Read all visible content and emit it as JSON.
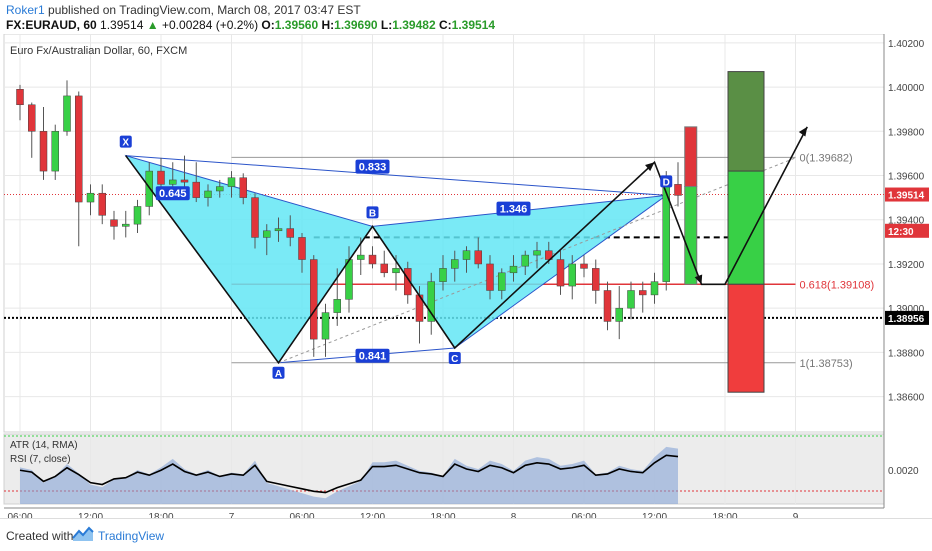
{
  "header": {
    "user": "Roker1",
    "published": "published on TradingView.com, March 08, 2017 03:47 EST",
    "symbol": "FX:EURAUD, 60",
    "price": "1.39514",
    "change": "+0.00284 (+0.2%)",
    "o_label": "O:",
    "o": "1.39560",
    "h_label": "H:",
    "h": "1.39690",
    "l_label": "L:",
    "l": "1.39482",
    "c_label": "C:",
    "c": "1.39514"
  },
  "footer": {
    "created": "Created with",
    "brand": "TradingView"
  },
  "colors": {
    "up": "#38d046",
    "down": "#e0353a",
    "pattern_fill": "#63e6f5",
    "pattern_line": "#2b54c9",
    "label_bg": "#1a3fd6",
    "grid": "#e8e8e8"
  },
  "chart_data": {
    "type": "candlestick",
    "title": "Euro Fx/Australian Dollar, 60, FXCM",
    "price_ylim": [
      1.3844,
      1.4024
    ],
    "price_ticks": [
      "1.40200",
      "1.40000",
      "1.39800",
      "1.39600",
      "1.39400",
      "1.39200",
      "1.39000",
      "1.38800",
      "1.38600"
    ],
    "time_labels": [
      "06:00",
      "12:00",
      "18:00",
      "7",
      "06:00",
      "12:00",
      "18:00",
      "8",
      "06:00",
      "12:00",
      "18:00",
      "9"
    ],
    "time_label_index": [
      0,
      6,
      12,
      18,
      24,
      30,
      36,
      42,
      48,
      54,
      60,
      66
    ],
    "price_tags": [
      {
        "text": "1.39514",
        "price": 1.39514,
        "color": "#e0353a"
      },
      {
        "text": "12:30",
        "price": 1.3935,
        "color": "#e0353a"
      },
      {
        "text": "1.38956",
        "price": 1.38956,
        "color": "#000000"
      }
    ],
    "candles": [
      [
        1.3999,
        1.4001,
        1.3985,
        1.3992
      ],
      [
        1.3992,
        1.3993,
        1.3968,
        1.398
      ],
      [
        1.398,
        1.3991,
        1.3958,
        1.3962
      ],
      [
        1.3962,
        1.3983,
        1.3958,
        1.398
      ],
      [
        1.398,
        1.4003,
        1.3978,
        1.3996
      ],
      [
        1.3996,
        1.3998,
        1.3928,
        1.3948
      ],
      [
        1.3948,
        1.3956,
        1.3942,
        1.3952
      ],
      [
        1.3952,
        1.3956,
        1.3938,
        1.3942
      ],
      [
        1.394,
        1.3944,
        1.3931,
        1.3937
      ],
      [
        1.3937,
        1.3944,
        1.3932,
        1.3938
      ],
      [
        1.3938,
        1.3949,
        1.3934,
        1.3946
      ],
      [
        1.3946,
        1.3966,
        1.3942,
        1.3962
      ],
      [
        1.3962,
        1.3968,
        1.3952,
        1.3956
      ],
      [
        1.3956,
        1.3966,
        1.3952,
        1.3958
      ],
      [
        1.3958,
        1.3969,
        1.3954,
        1.3957
      ],
      [
        1.3957,
        1.3966,
        1.3948,
        1.395
      ],
      [
        1.395,
        1.3956,
        1.3946,
        1.3953
      ],
      [
        1.3953,
        1.3958,
        1.395,
        1.3955
      ],
      [
        1.3955,
        1.3962,
        1.395,
        1.3959
      ],
      [
        1.3959,
        1.3961,
        1.3947,
        1.395
      ],
      [
        1.395,
        1.3952,
        1.3927,
        1.3932
      ],
      [
        1.3932,
        1.3938,
        1.3924,
        1.3935
      ],
      [
        1.3935,
        1.3941,
        1.393,
        1.3936
      ],
      [
        1.3936,
        1.3942,
        1.3928,
        1.3932
      ],
      [
        1.3932,
        1.3934,
        1.3916,
        1.3922
      ],
      [
        1.3922,
        1.3924,
        1.3878,
        1.3886
      ],
      [
        1.3886,
        1.3902,
        1.3878,
        1.3898
      ],
      [
        1.3898,
        1.3918,
        1.3892,
        1.3904
      ],
      [
        1.3904,
        1.3928,
        1.3898,
        1.3922
      ],
      [
        1.3922,
        1.3932,
        1.3915,
        1.3924
      ],
      [
        1.3924,
        1.3928,
        1.3918,
        1.392
      ],
      [
        1.392,
        1.3926,
        1.3914,
        1.3916
      ],
      [
        1.3916,
        1.3924,
        1.3908,
        1.3918
      ],
      [
        1.3918,
        1.3921,
        1.3902,
        1.3906
      ],
      [
        1.3906,
        1.391,
        1.3884,
        1.3894
      ],
      [
        1.3894,
        1.3916,
        1.3888,
        1.3912
      ],
      [
        1.3912,
        1.3924,
        1.3908,
        1.3918
      ],
      [
        1.3918,
        1.3926,
        1.3912,
        1.3922
      ],
      [
        1.3922,
        1.3928,
        1.3916,
        1.3926
      ],
      [
        1.3926,
        1.3932,
        1.3918,
        1.392
      ],
      [
        1.392,
        1.3924,
        1.3904,
        1.3908
      ],
      [
        1.3908,
        1.3918,
        1.3904,
        1.3916
      ],
      [
        1.3916,
        1.3924,
        1.3912,
        1.3919
      ],
      [
        1.3919,
        1.3926,
        1.3915,
        1.3924
      ],
      [
        1.3924,
        1.393,
        1.3918,
        1.3926
      ],
      [
        1.3926,
        1.393,
        1.392,
        1.3922
      ],
      [
        1.3922,
        1.3926,
        1.3906,
        1.391
      ],
      [
        1.391,
        1.3924,
        1.3904,
        1.392
      ],
      [
        1.392,
        1.3924,
        1.3914,
        1.3918
      ],
      [
        1.3918,
        1.3922,
        1.3902,
        1.3908
      ],
      [
        1.3908,
        1.3912,
        1.389,
        1.3894
      ],
      [
        1.3894,
        1.391,
        1.3886,
        1.39
      ],
      [
        1.39,
        1.3912,
        1.3895,
        1.3908
      ],
      [
        1.3908,
        1.3912,
        1.3898,
        1.3906
      ],
      [
        1.3906,
        1.3916,
        1.3902,
        1.3912
      ],
      [
        1.3912,
        1.3962,
        1.3908,
        1.3958
      ],
      [
        1.3956,
        1.3966,
        1.3946,
        1.3951
      ]
    ],
    "patterns": {
      "points": [
        {
          "label": "X",
          "i": 9,
          "price": 1.3969
        },
        {
          "label": "A",
          "i": 22,
          "price": 1.38753
        },
        {
          "label": "B",
          "i": 30,
          "price": 1.3937
        },
        {
          "label": "C",
          "i": 37,
          "price": 1.3882
        },
        {
          "label": "D",
          "i": 55,
          "price": 1.3951
        }
      ],
      "ratios": [
        {
          "text": "0.645",
          "i": 13,
          "price": 1.3952
        },
        {
          "text": "0.833",
          "i": 30,
          "price": 1.3964
        },
        {
          "text": "1.346",
          "i": 42,
          "price": 1.3945
        },
        {
          "text": "0.841",
          "i": 30,
          "price": 1.38785
        }
      ]
    },
    "fib_levels": [
      {
        "text": "0(1.39682)",
        "price": 1.39682
      },
      {
        "text": "0.618(1.39108)",
        "price": 1.39108
      },
      {
        "text": "1(1.38753)",
        "price": 1.38753
      }
    ],
    "dashed_level": 1.3932,
    "dotted_level": 1.38956,
    "indicator": {
      "labels": [
        "ATR (14, RMA)",
        "RSI (7, close)"
      ],
      "tick": "0.0020",
      "rsi": [
        48,
        45,
        30,
        38,
        52,
        41,
        28,
        25,
        34,
        36,
        45,
        40,
        48,
        58,
        46,
        40,
        45,
        38,
        42,
        40,
        56,
        30,
        26,
        22,
        18,
        14,
        12,
        20,
        26,
        32,
        54,
        54,
        56,
        50,
        44,
        42,
        38,
        58,
        50,
        46,
        56,
        52,
        44,
        56,
        60,
        58,
        50,
        52,
        56,
        40,
        42,
        50,
        46,
        44,
        60,
        72,
        70
      ]
    }
  }
}
